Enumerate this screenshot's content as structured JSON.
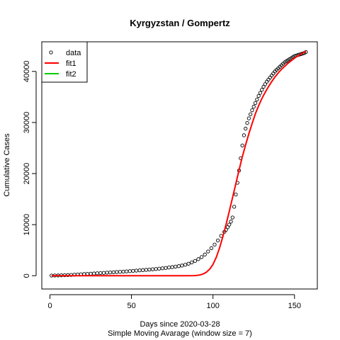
{
  "chart_data": {
    "type": "scatter",
    "title": "Kyrgyzstan / Gompertz",
    "xlabel": "Days since 2020-03-28",
    "subtitle": "Simple Moving Avarage (window size = 7)",
    "ylabel": "Cumulative Cases",
    "xlim": [
      -5,
      164
    ],
    "ylim": [
      -2600,
      45800
    ],
    "xticks": [
      0,
      50,
      100,
      150
    ],
    "yticks": [
      0,
      10000,
      20000,
      30000,
      40000
    ],
    "grid": false,
    "legend_position": "top-left",
    "legend": [
      {
        "label": "data",
        "kind": "point",
        "color": "#000000"
      },
      {
        "label": "fit1",
        "kind": "line",
        "color": "#ff0000"
      },
      {
        "label": "fit2",
        "kind": "line",
        "color": "#00cd00"
      }
    ],
    "series": [
      {
        "name": "data",
        "kind": "points",
        "color": "#000000",
        "x": [
          1,
          3,
          5,
          7,
          9,
          11,
          13,
          15,
          17,
          19,
          21,
          23,
          25,
          27,
          29,
          31,
          33,
          35,
          37,
          39,
          41,
          43,
          45,
          47,
          49,
          51,
          53,
          55,
          57,
          59,
          61,
          63,
          65,
          67,
          69,
          71,
          73,
          75,
          77,
          79,
          81,
          83,
          85,
          87,
          89,
          91,
          93,
          95,
          97,
          99,
          101,
          103,
          105,
          107,
          108,
          109,
          110,
          111,
          112,
          113,
          114,
          115,
          116,
          117,
          118,
          119,
          120,
          121,
          122,
          123,
          124,
          125,
          126,
          127,
          128,
          129,
          130,
          131,
          132,
          133,
          134,
          135,
          136,
          137,
          138,
          139,
          140,
          141,
          142,
          143,
          144,
          145,
          146,
          147,
          148,
          149,
          150,
          151,
          152,
          153,
          154,
          155,
          156,
          157
        ],
        "y": [
          30,
          45,
          60,
          80,
          100,
          130,
          160,
          200,
          240,
          280,
          320,
          360,
          400,
          440,
          480,
          520,
          560,
          600,
          640,
          680,
          720,
          760,
          800,
          850,
          900,
          950,
          1000,
          1050,
          1100,
          1150,
          1200,
          1260,
          1320,
          1390,
          1460,
          1530,
          1610,
          1690,
          1780,
          1880,
          2000,
          2150,
          2350,
          2600,
          2900,
          3250,
          3650,
          4150,
          4750,
          5400,
          6100,
          6900,
          7800,
          8600,
          9000,
          9500,
          10000,
          10600,
          11400,
          13500,
          15900,
          18200,
          20600,
          23000,
          25500,
          27500,
          28800,
          29900,
          30800,
          31600,
          32400,
          33100,
          33800,
          34500,
          35200,
          35800,
          36400,
          37000,
          37500,
          38000,
          38400,
          38800,
          39200,
          39600,
          40000,
          40300,
          40600,
          40900,
          41200,
          41500,
          41800,
          42000,
          42200,
          42400,
          42600,
          42800,
          43000,
          43100,
          43200,
          43300,
          43400,
          43500,
          43600,
          43800
        ]
      },
      {
        "name": "fit1",
        "kind": "line",
        "color": "#ff0000",
        "x": [
          1,
          10,
          20,
          30,
          40,
          50,
          60,
          70,
          80,
          85,
          88,
          90,
          92,
          94,
          96,
          98,
          100,
          102,
          104,
          106,
          108,
          110,
          112,
          114,
          116,
          118,
          120,
          122,
          124,
          126,
          128,
          130,
          132,
          134,
          136,
          138,
          140,
          142,
          144,
          146,
          148,
          150,
          152,
          154,
          156,
          157
        ],
        "y": [
          0,
          0,
          0,
          0,
          0,
          0,
          0,
          0,
          0,
          0,
          20,
          60,
          150,
          350,
          700,
          1300,
          2200,
          3600,
          5400,
          7600,
          10000,
          12600,
          15300,
          18000,
          20700,
          23300,
          25600,
          27800,
          29800,
          31700,
          33300,
          34700,
          35900,
          37000,
          38000,
          38900,
          39700,
          40400,
          41000,
          41600,
          42100,
          42600,
          43000,
          43400,
          43800,
          44000
        ]
      }
    ]
  }
}
